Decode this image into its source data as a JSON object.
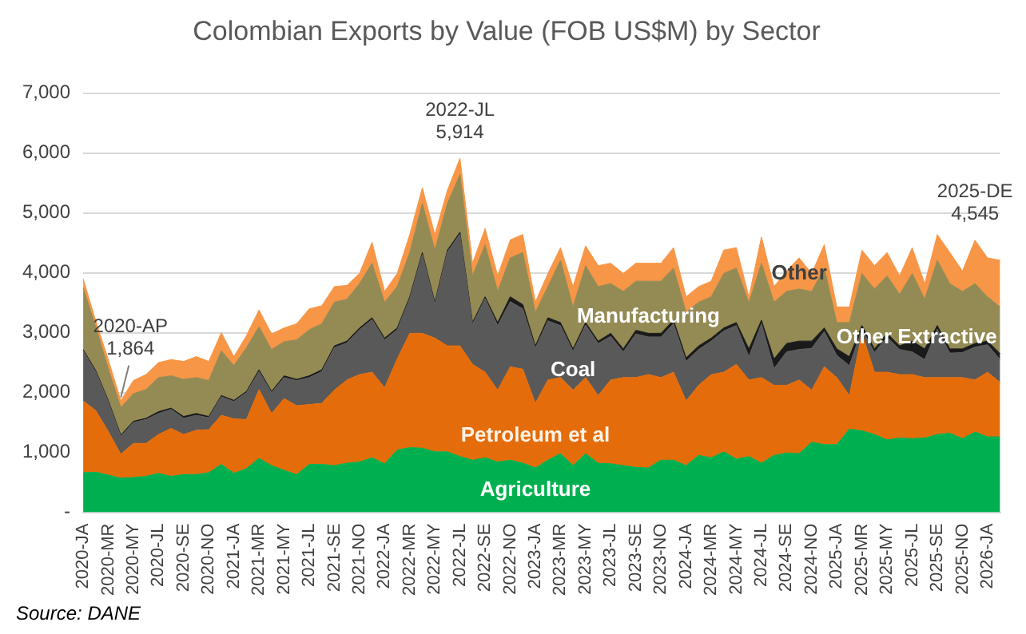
{
  "chart_data": {
    "type": "area",
    "stacked": true,
    "title": "Colombian Exports by Value (FOB US$M) by Sector",
    "categories": [
      "2020-JA",
      null,
      "2020-MR",
      null,
      "2020-MY",
      null,
      "2020-JL",
      null,
      "2020-SE",
      null,
      "2020-NO",
      null,
      "2021-JA",
      null,
      "2021-MR",
      null,
      "2021-MY",
      null,
      "2021-JL",
      null,
      "2021-SE",
      null,
      "2021-NO",
      null,
      "2022-JA",
      null,
      "2022-MR",
      null,
      "2022-MY",
      null,
      "2022-JL",
      null,
      "2022-SE",
      null,
      "2022-NO",
      null,
      "2023-JA",
      null,
      "2023-MR",
      null,
      "2023-MY",
      null,
      "2023-JL",
      null,
      "2023-SE",
      null,
      "2023-NO",
      null,
      "2024-JA",
      null,
      "2024-MR",
      null,
      "2024-MY",
      null,
      "2024-JL",
      null,
      "2024-SE",
      null,
      "2024-NO",
      null,
      "2025-JA",
      null,
      "2025-MR",
      null,
      "2025-MY",
      null,
      "2025-JL",
      null,
      "2025-SE",
      null,
      "2025-NO",
      null,
      "2026-JA",
      null
    ],
    "series": [
      {
        "name": "Agriculture",
        "color": "#00b050",
        "values": [
          660,
          670,
          620,
          570,
          580,
          600,
          650,
          600,
          630,
          630,
          660,
          800,
          650,
          730,
          900,
          780,
          700,
          630,
          800,
          800,
          780,
          820,
          840,
          910,
          810,
          1040,
          1080,
          1070,
          1010,
          1010,
          930,
          870,
          910,
          840,
          870,
          820,
          740,
          870,
          980,
          780,
          980,
          820,
          810,
          780,
          750,
          740,
          870,
          870,
          780,
          950,
          910,
          1010,
          890,
          930,
          820,
          950,
          990,
          980,
          1170,
          1130,
          1130,
          1390,
          1360,
          1300,
          1210,
          1240,
          1230,
          1240,
          1300,
          1320,
          1230,
          1340,
          1260,
          1260
        ]
      },
      {
        "name": "Petroleum et al",
        "color": "#e46c0a",
        "values": [
          1200,
          1030,
          730,
          400,
          570,
          550,
          650,
          800,
          670,
          740,
          720,
          820,
          910,
          820,
          1150,
          870,
          1200,
          1150,
          1000,
          1020,
          1260,
          1390,
          1460,
          1430,
          1270,
          1520,
          1910,
          1920,
          1900,
          1770,
          1850,
          1600,
          1430,
          1200,
          1560,
          1570,
          1080,
          1340,
          1270,
          1260,
          1270,
          1130,
          1400,
          1470,
          1500,
          1560,
          1380,
          1470,
          1080,
          1170,
          1390,
          1330,
          1580,
          1280,
          1430,
          1170,
          1130,
          1230,
          870,
          1300,
          1120,
          560,
          1630,
          1040,
          1130,
          1060,
          1070,
          1010,
          950,
          930,
          1020,
          870,
          1080,
          910
        ]
      },
      {
        "name": "Coal",
        "color": "#595959",
        "values": [
          840,
          650,
          500,
          300,
          350,
          400,
          350,
          320,
          270,
          250,
          200,
          310,
          290,
          450,
          300,
          350,
          350,
          420,
          450,
          530,
          710,
          620,
          750,
          880,
          800,
          490,
          580,
          1320,
          570,
          1570,
          1870,
          670,
          1230,
          1080,
          1090,
          1010,
          920,
          990,
          870,
          650,
          880,
          870,
          730,
          430,
          730,
          630,
          680,
          810,
          660,
          600,
          560,
          690,
          650,
          390,
          900,
          280,
          560,
          510,
          700,
          590,
          370,
          500,
          70,
          330,
          590,
          420,
          380,
          300,
          810,
          410,
          420,
          550,
          460,
          380
        ]
      },
      {
        "name": "Other Extractive",
        "color": "#1a1a1a",
        "values": [
          20,
          20,
          20,
          20,
          20,
          20,
          30,
          20,
          30,
          30,
          20,
          20,
          20,
          20,
          30,
          20,
          30,
          20,
          30,
          30,
          30,
          30,
          30,
          30,
          30,
          30,
          30,
          30,
          30,
          30,
          30,
          30,
          30,
          50,
          80,
          70,
          40,
          50,
          50,
          40,
          40,
          40,
          50,
          50,
          60,
          60,
          60,
          60,
          60,
          60,
          50,
          50,
          50,
          130,
          60,
          160,
          140,
          140,
          120,
          60,
          110,
          150,
          60,
          60,
          60,
          60,
          180,
          180,
          60,
          70,
          60,
          60,
          60,
          100
        ]
      },
      {
        "name": "Manufacturing",
        "color": "#948a54",
        "values": [
          1030,
          730,
          530,
          460,
          460,
          480,
          570,
          540,
          620,
          600,
          600,
          750,
          580,
          730,
          720,
          700,
          570,
          660,
          770,
          770,
          730,
          700,
          740,
          910,
          600,
          690,
          740,
          820,
          870,
          780,
          960,
          780,
          870,
          520,
          650,
          870,
          560,
          520,
          1040,
          700,
          950,
          910,
          830,
          960,
          820,
          870,
          870,
          870,
          760,
          730,
          690,
          910,
          910,
          770,
          950,
          950,
          870,
          870,
          830,
          1000,
          440,
          570,
          870,
          1000,
          960,
          860,
          1130,
          830,
          1090,
          1090,
          960,
          1000,
          740,
          780
        ]
      },
      {
        "name": "Other",
        "color": "#f79646",
        "values": [
          150,
          100,
          150,
          114,
          220,
          250,
          250,
          270,
          300,
          350,
          320,
          300,
          150,
          200,
          280,
          260,
          230,
          270,
          350,
          300,
          260,
          230,
          170,
          350,
          180,
          220,
          300,
          260,
          260,
          220,
          274,
          210,
          270,
          260,
          300,
          300,
          170,
          220,
          210,
          340,
          330,
          350,
          340,
          300,
          300,
          300,
          300,
          340,
          260,
          260,
          260,
          390,
          340,
          100,
          440,
          260,
          340,
          520,
          300,
          390,
          260,
          260,
          390,
          390,
          390,
          310,
          430,
          260,
          430,
          520,
          340,
          725,
          650,
          780
        ]
      }
    ],
    "ylim": [
      0,
      7000
    ],
    "yticks": [
      {
        "value": 0,
        "label": "-"
      },
      {
        "value": 1000,
        "label": "1,000"
      },
      {
        "value": 2000,
        "label": "2,000"
      },
      {
        "value": 3000,
        "label": "3,000"
      },
      {
        "value": 4000,
        "label": "4,000"
      },
      {
        "value": 5000,
        "label": "5,000"
      },
      {
        "value": 6000,
        "label": "6,000"
      },
      {
        "value": 7000,
        "label": "7,000"
      }
    ],
    "grid": "y",
    "legend": false,
    "annotations": [
      {
        "text": "2020-AP\n1,864",
        "y": 1864
      },
      {
        "text": "2022-JL\n5,914",
        "y": 5914
      },
      {
        "text": "2025-DE\n4,545",
        "y": 4545
      },
      "Source: DANE"
    ]
  }
}
